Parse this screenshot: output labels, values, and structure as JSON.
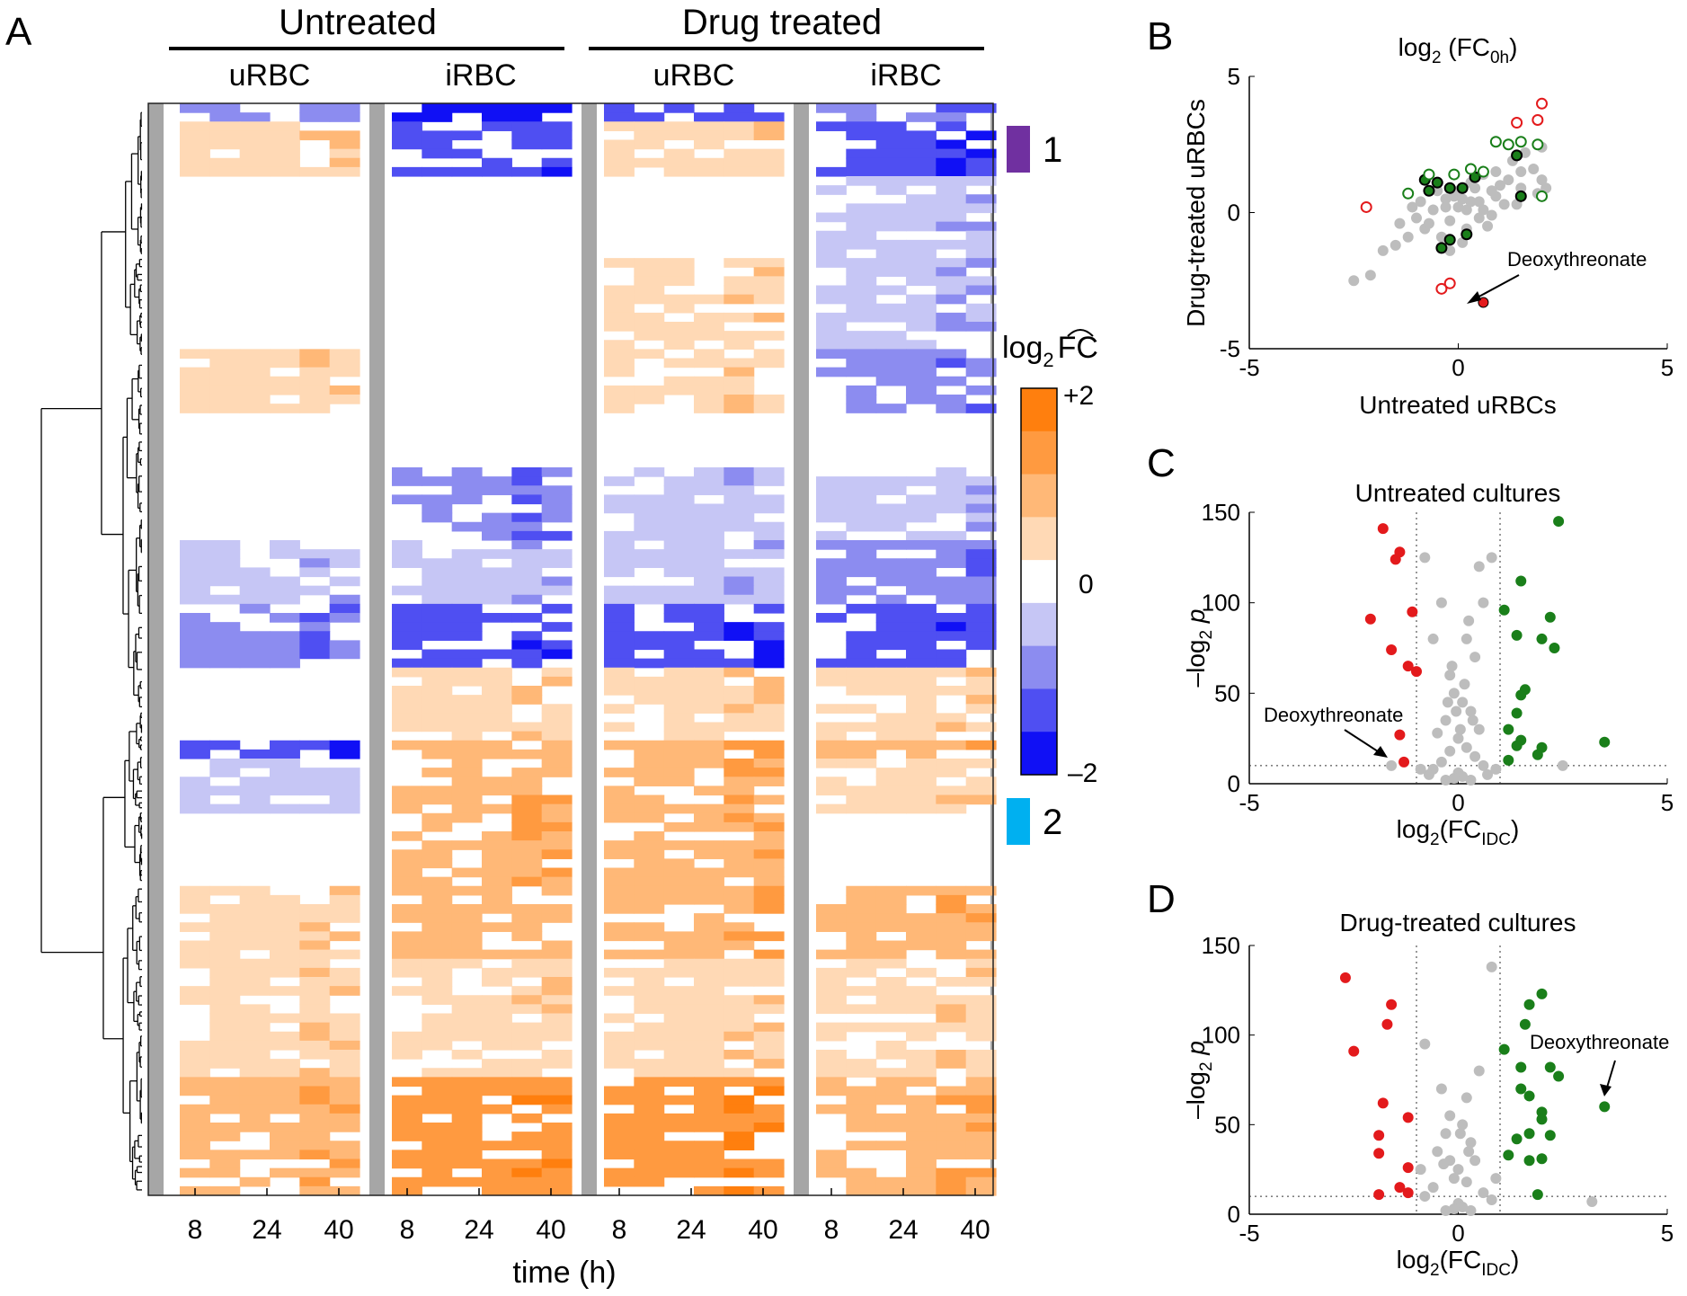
{
  "panels": {
    "a": "A",
    "b": "B",
    "c": "C",
    "d": "D"
  },
  "heatmap": {
    "group_labels": [
      "Untreated",
      "Drug treated"
    ],
    "column_labels": [
      "uRBC",
      "iRBC",
      "uRBC",
      "iRBC"
    ],
    "time_ticks": [
      "8",
      "24",
      "40"
    ],
    "xlabel": "time (h)",
    "cluster_labels": [
      "1",
      "2"
    ],
    "cluster_colors": [
      "#7030a0",
      "#00b0f0"
    ],
    "colorbar": {
      "title": "log2 FC^",
      "title_main": "log",
      "title_sub": "2",
      "title_fc": "FC",
      "max_label": "+2",
      "mid_label": "0",
      "min_label": "–2",
      "colors": [
        "#ff7f0e",
        "#ff9a40",
        "#ffb877",
        "#ffd9b5",
        "#ffffff",
        "#c6c6f5",
        "#8c8cf0",
        "#4f4ff2",
        "#1010f5"
      ]
    }
  },
  "chart_data": [
    {
      "id": "B",
      "type": "scatter",
      "title": "log2 (FC0h)",
      "title_main": "log",
      "title_sub": "2",
      "title_rest": " (FC",
      "title_sub2": "0h",
      "title_end": ")",
      "xlabel": "Untreated uRBCs",
      "ylabel": "Drug-treated uRBCs",
      "xlim": [
        -5,
        5
      ],
      "ylim": [
        -5,
        5
      ],
      "xticks": [
        -5,
        0,
        5
      ],
      "yticks": [
        -5,
        0,
        5
      ],
      "annotation": "Deoxythreonate",
      "series": [
        {
          "name": "gray",
          "color": "#bdbdbd",
          "points": [
            [
              -0.3,
              0.5
            ],
            [
              0,
              0.2
            ],
            [
              0.5,
              0.4
            ],
            [
              0.8,
              0.8
            ],
            [
              1.2,
              1.2
            ],
            [
              1.5,
              1.5
            ],
            [
              1.8,
              1.6
            ],
            [
              2,
              1.2
            ],
            [
              1.5,
              0.9
            ],
            [
              0.5,
              -0.2
            ],
            [
              0.2,
              0.1
            ],
            [
              -0.2,
              -0.3
            ],
            [
              -0.8,
              -0.6
            ],
            [
              -1.2,
              -0.9
            ],
            [
              -1.5,
              -1.2
            ],
            [
              -1.8,
              -1.4
            ],
            [
              -2.5,
              -2.5
            ],
            [
              -2.1,
              -2.3
            ],
            [
              -0.5,
              0.8
            ],
            [
              0.3,
              1.1
            ],
            [
              0.9,
              0.6
            ],
            [
              1.1,
              0.3
            ],
            [
              0.7,
              -0.5
            ],
            [
              0.2,
              -0.6
            ],
            [
              -0.1,
              0.6
            ],
            [
              0.4,
              0.9
            ],
            [
              -0.6,
              0.1
            ],
            [
              -1,
              -0.2
            ],
            [
              -0.4,
              -0.9
            ],
            [
              0.1,
              -1.1
            ],
            [
              0.6,
              1.4
            ],
            [
              1.3,
              1.9
            ],
            [
              1.6,
              2.2
            ],
            [
              2,
              2.4
            ],
            [
              1.4,
              0.3
            ],
            [
              1.9,
              0.7
            ],
            [
              2.1,
              0.9
            ],
            [
              0.9,
              1.5
            ],
            [
              -0.9,
              0.4
            ],
            [
              -1.4,
              -0.4
            ],
            [
              -0.2,
              -1.4
            ],
            [
              0,
              0.8
            ],
            [
              0.3,
              0.4
            ],
            [
              -0.3,
              0.2
            ],
            [
              0.6,
              0.1
            ],
            [
              0.1,
              0.5
            ],
            [
              1,
              1
            ],
            [
              -0.7,
              -0.4
            ],
            [
              0.8,
              -0.1
            ],
            [
              -1.1,
              0.2
            ]
          ]
        },
        {
          "name": "green-filled",
          "color": "#1a7f1a",
          "points": [
            [
              -0.8,
              1.2
            ],
            [
              -0.5,
              1.1
            ],
            [
              -0.2,
              0.9
            ],
            [
              0.1,
              0.9
            ],
            [
              0.4,
              1.3
            ],
            [
              1.5,
              0.6
            ],
            [
              -0.4,
              -1.3
            ],
            [
              -0.2,
              -1.0
            ],
            [
              0.2,
              -0.8
            ],
            [
              -0.7,
              0.8
            ],
            [
              1.4,
              2.1
            ]
          ]
        },
        {
          "name": "green-open",
          "color": "#1a7f1a",
          "points": [
            [
              -1.2,
              0.7
            ],
            [
              -0.7,
              1.4
            ],
            [
              -0.1,
              1.4
            ],
            [
              0.3,
              1.6
            ],
            [
              0.6,
              1.5
            ],
            [
              1.2,
              2.5
            ],
            [
              1.5,
              2.6
            ],
            [
              1.9,
              2.5
            ],
            [
              2,
              0.6
            ],
            [
              0.9,
              2.6
            ]
          ]
        },
        {
          "name": "red-open",
          "color": "#e31a1c",
          "points": [
            [
              -2.2,
              0.2
            ],
            [
              1.4,
              3.3
            ],
            [
              1.9,
              3.4
            ],
            [
              2,
              4.0
            ],
            [
              -0.4,
              -2.8
            ],
            [
              -0.2,
              -2.6
            ]
          ]
        },
        {
          "name": "red-filled",
          "color": "#e31a1c",
          "points": [
            [
              0.6,
              -3.3
            ]
          ]
        }
      ]
    },
    {
      "id": "C",
      "type": "scatter",
      "title": "Untreated cultures",
      "xlabel": "log2(FCIDC)",
      "ylabel": "–log2 p",
      "xlim": [
        -5,
        5
      ],
      "ylim": [
        0,
        150
      ],
      "xticks": [
        -5,
        0,
        5
      ],
      "yticks": [
        0,
        50,
        100,
        150
      ],
      "thresholds": {
        "x": [
          -1,
          1
        ],
        "y": 10
      },
      "annotation": "Deoxythreonate",
      "series": [
        {
          "name": "down",
          "color": "#e31a1c",
          "points": [
            [
              -1.8,
              141
            ],
            [
              -1.4,
              128
            ],
            [
              -1.5,
              124
            ],
            [
              -2.1,
              91
            ],
            [
              -1.1,
              95
            ],
            [
              -1.6,
              74
            ],
            [
              -1.2,
              65
            ],
            [
              -1.0,
              62
            ],
            [
              -1.4,
              27
            ],
            [
              -1.3,
              12
            ]
          ]
        },
        {
          "name": "up",
          "color": "#1a7f1a",
          "points": [
            [
              2.4,
              145
            ],
            [
              1.1,
              96
            ],
            [
              1.5,
              112
            ],
            [
              2.0,
              80
            ],
            [
              2.2,
              92
            ],
            [
              2.3,
              75
            ],
            [
              1.4,
              82
            ],
            [
              1.6,
              52
            ],
            [
              1.5,
              49
            ],
            [
              1.4,
              39
            ],
            [
              1.2,
              30
            ],
            [
              1.5,
              24
            ],
            [
              1.4,
              21
            ],
            [
              1.9,
              16
            ],
            [
              1.2,
              13
            ],
            [
              3.5,
              23
            ],
            [
              2.0,
              20
            ]
          ]
        },
        {
          "name": "ns",
          "color": "#bdbdbd",
          "points": [
            [
              -0.8,
              125
            ],
            [
              0.8,
              125
            ],
            [
              0.5,
              120
            ],
            [
              0.6,
              100
            ],
            [
              -0.4,
              100
            ],
            [
              -0.6,
              80
            ],
            [
              0.2,
              80
            ],
            [
              0.4,
              70
            ],
            [
              -0.2,
              60
            ],
            [
              -0.1,
              50
            ],
            [
              0.1,
              45
            ],
            [
              0.3,
              40
            ],
            [
              -0.3,
              35
            ],
            [
              0.5,
              30
            ],
            [
              -0.5,
              28
            ],
            [
              0,
              25
            ],
            [
              0.2,
              20
            ],
            [
              -0.2,
              18
            ],
            [
              0.4,
              15
            ],
            [
              -0.4,
              12
            ],
            [
              0.6,
              10
            ],
            [
              -0.6,
              8
            ],
            [
              0,
              6
            ],
            [
              0.1,
              4
            ],
            [
              -0.1,
              3
            ],
            [
              0.3,
              2
            ],
            [
              -0.3,
              2
            ],
            [
              0.7,
              5
            ],
            [
              -0.7,
              5
            ],
            [
              0.9,
              8
            ],
            [
              -0.9,
              8
            ],
            [
              2.5,
              10
            ],
            [
              -1.6,
              10
            ],
            [
              0.05,
              30
            ],
            [
              -0.05,
              40
            ],
            [
              0.15,
              55
            ],
            [
              -0.15,
              65
            ],
            [
              0.25,
              90
            ],
            [
              -0.25,
              45
            ],
            [
              0.35,
              35
            ]
          ]
        }
      ]
    },
    {
      "id": "D",
      "type": "scatter",
      "title": "Drug-treated cultures",
      "xlabel": "log2(FCIDC)",
      "ylabel": "–log2 p",
      "xlim": [
        -5,
        5
      ],
      "ylim": [
        0,
        150
      ],
      "xticks": [
        -5,
        0,
        5
      ],
      "yticks": [
        0,
        50,
        100,
        150
      ],
      "thresholds": {
        "x": [
          -1,
          1
        ],
        "y": 10
      },
      "annotation": "Deoxythreonate",
      "series": [
        {
          "name": "down",
          "color": "#e31a1c",
          "points": [
            [
              -2.7,
              132
            ],
            [
              -1.6,
              117
            ],
            [
              -1.7,
              106
            ],
            [
              -2.5,
              91
            ],
            [
              -1.8,
              62
            ],
            [
              -1.2,
              54
            ],
            [
              -1.9,
              44
            ],
            [
              -1.9,
              34
            ],
            [
              -1.2,
              26
            ],
            [
              -1.4,
              15
            ],
            [
              -1.9,
              11
            ],
            [
              -1.2,
              12
            ]
          ]
        },
        {
          "name": "up",
          "color": "#1a7f1a",
          "points": [
            [
              2.0,
              123
            ],
            [
              1.7,
              117
            ],
            [
              1.6,
              106
            ],
            [
              1.1,
              92
            ],
            [
              1.5,
              82
            ],
            [
              1.5,
              70
            ],
            [
              1.7,
              66
            ],
            [
              2.2,
              82
            ],
            [
              2.4,
              77
            ],
            [
              2.0,
              57
            ],
            [
              2.0,
              53
            ],
            [
              1.7,
              45
            ],
            [
              2.2,
              44
            ],
            [
              1.4,
              42
            ],
            [
              1.2,
              33
            ],
            [
              1.7,
              30
            ],
            [
              2.0,
              31
            ],
            [
              1.9,
              11
            ],
            [
              3.5,
              60
            ]
          ]
        },
        {
          "name": "ns",
          "color": "#bdbdbd",
          "points": [
            [
              0.8,
              138
            ],
            [
              -0.8,
              95
            ],
            [
              0.5,
              80
            ],
            [
              -0.4,
              70
            ],
            [
              0.2,
              65
            ],
            [
              -0.2,
              55
            ],
            [
              0.1,
              50
            ],
            [
              -0.3,
              45
            ],
            [
              0.3,
              40
            ],
            [
              -0.5,
              35
            ],
            [
              0.4,
              30
            ],
            [
              0,
              25
            ],
            [
              -0.1,
              20
            ],
            [
              0.2,
              18
            ],
            [
              -0.6,
              15
            ],
            [
              0.6,
              12
            ],
            [
              -0.8,
              10
            ],
            [
              0.8,
              8
            ],
            [
              0,
              6
            ],
            [
              0.1,
              4
            ],
            [
              -0.1,
              3
            ],
            [
              0.3,
              2
            ],
            [
              -0.3,
              2
            ],
            [
              3.2,
              7
            ],
            [
              -0.9,
              25
            ],
            [
              0.9,
              20
            ],
            [
              -0.2,
              30
            ],
            [
              0.25,
              35
            ],
            [
              -0.35,
              28
            ],
            [
              0.05,
              45
            ]
          ]
        }
      ]
    }
  ]
}
